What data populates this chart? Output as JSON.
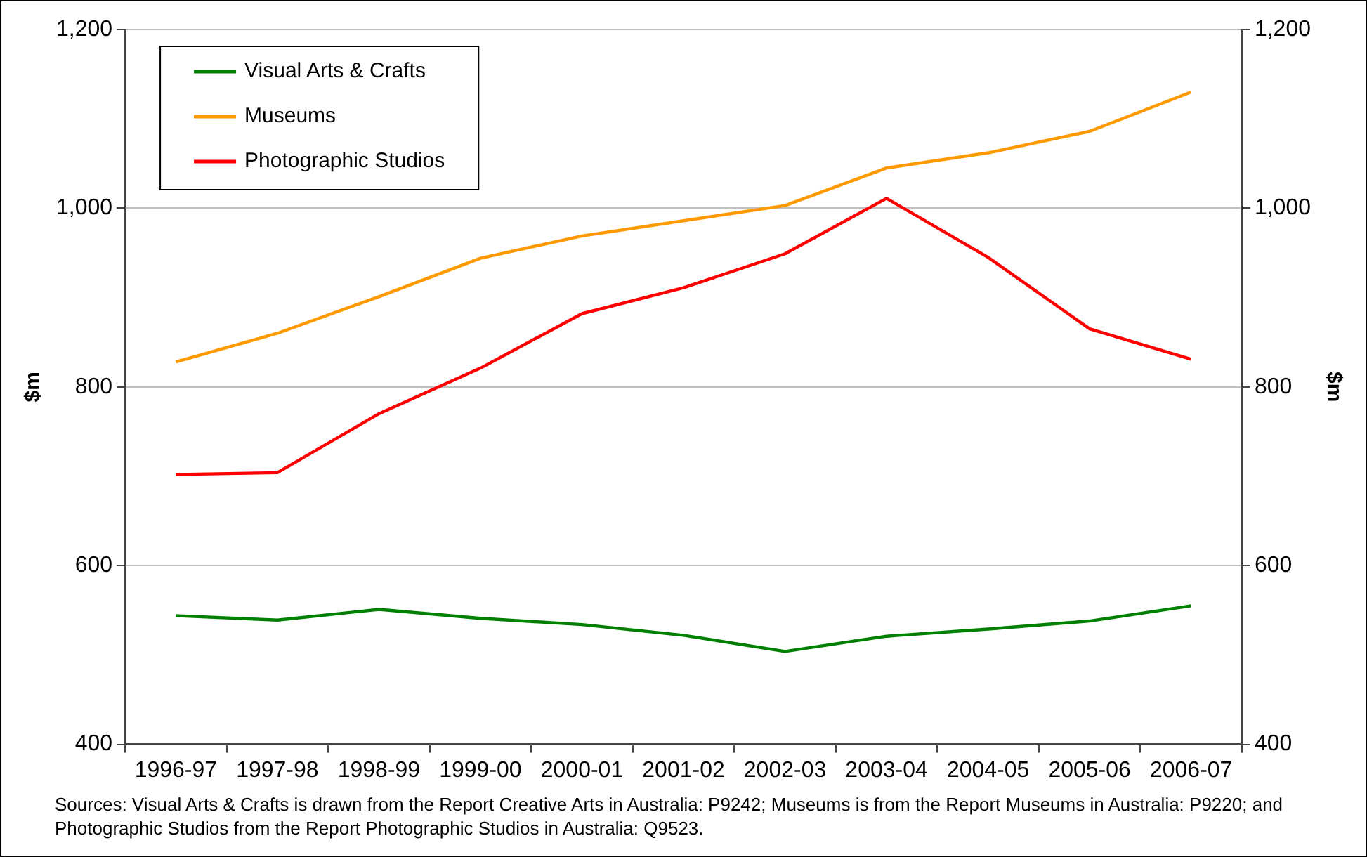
{
  "chart_data": {
    "type": "line",
    "categories": [
      "1996-97",
      "1997-98",
      "1998-99",
      "1999-00",
      "2000-01",
      "2001-02",
      "2002-03",
      "2003-04",
      "2004-05",
      "2005-06",
      "2006-07"
    ],
    "series": [
      {
        "name": "Visual Arts & Crafts",
        "color": "#008000",
        "values": [
          544,
          539,
          551,
          541,
          534,
          522,
          504,
          521,
          529,
          538,
          555
        ]
      },
      {
        "name": "Museums",
        "color": "#ff9900",
        "values": [
          828,
          860,
          901,
          944,
          969,
          986,
          1003,
          1045,
          1062,
          1086,
          1130
        ]
      },
      {
        "name": "Photographic Studios",
        "color": "#ff0000",
        "values": [
          702,
          704,
          770,
          821,
          882,
          911,
          949,
          1011,
          945,
          865,
          831
        ]
      }
    ],
    "ylabel": "$m",
    "y2label": "$m",
    "ylim": [
      400,
      1200
    ],
    "yticks": [
      400,
      600,
      800,
      {
        "value": 1000,
        "label": "1,000"
      },
      {
        "value": 1200,
        "label": "1,200"
      }
    ],
    "y2lim": [
      400,
      1200
    ],
    "y2ticks": [
      400,
      600,
      800,
      {
        "value": 1000,
        "label": "1,000"
      },
      {
        "value": 1200,
        "label": "1,200"
      }
    ],
    "grid": "y",
    "legend": "top left",
    "marker": "none",
    "line_style": "solid",
    "annotations": [
      "Sources: Visual Arts & Crafts is drawn from the Report Creative Arts in Australia: P9242; Museums is from the Report Museums in Australia: P9220; and Photographic Studios from the Report Photographic Studios in Australia: Q9523."
    ]
  }
}
